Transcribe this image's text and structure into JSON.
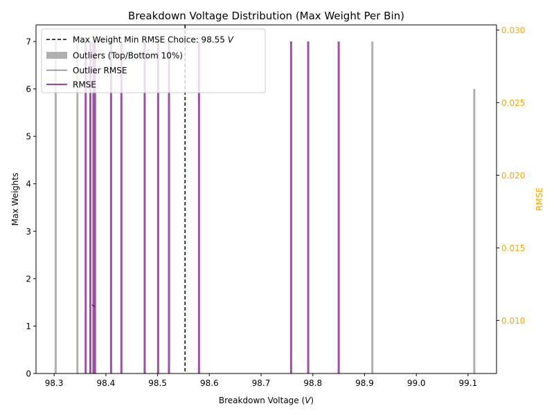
{
  "chart_data": {
    "type": "bar",
    "title": "Breakdown Voltage Distribution (Max Weight Per Bin)",
    "xlabel": "Breakdown Voltage (V)",
    "xlabel_parts": [
      "Breakdown Voltage (",
      "V",
      ")"
    ],
    "ylabel": "Max Weights",
    "y2label": "RMSE",
    "xlim": [
      98.265,
      99.155
    ],
    "ylim": [
      0,
      7.35
    ],
    "y2lim": [
      0.00635,
      0.03035
    ],
    "xticks": [
      98.3,
      98.4,
      98.5,
      98.6,
      98.7,
      98.8,
      98.9,
      99.0,
      99.1
    ],
    "xtick_labels": [
      "98.3",
      "98.4",
      "98.5",
      "98.6",
      "98.7",
      "98.8",
      "98.9",
      "99.0",
      "99.1"
    ],
    "yticks": [
      0,
      1,
      2,
      3,
      4,
      5,
      6,
      7
    ],
    "ytick_labels": [
      "0",
      "1",
      "2",
      "3",
      "4",
      "5",
      "6",
      "7"
    ],
    "y2ticks": [
      0.01,
      0.015,
      0.02,
      0.025,
      0.03
    ],
    "y2tick_labels": [
      "0.010",
      "0.015",
      "0.020",
      "0.025",
      "0.030"
    ],
    "bar_width": 0.004,
    "colors": {
      "bars": "#9b4fa5",
      "outliers": "#b0b0b0",
      "rmse": "#800080",
      "outlier_rmse": "#808080",
      "choice": "#000000",
      "right_axis": "#ffa500"
    },
    "series": [
      {
        "name": "Outliers (Top/Bottom 10%)",
        "x": [
          98.303,
          98.345,
          98.915,
          99.112
        ],
        "values": [
          7,
          7,
          7,
          6
        ]
      },
      {
        "x": [
          98.361,
          98.37,
          98.376,
          98.379,
          98.41,
          98.43,
          98.475,
          98.501,
          98.522,
          98.58,
          98.758,
          98.791,
          98.85
        ],
        "values": [
          7,
          7,
          7,
          7,
          7,
          7,
          7,
          7,
          7,
          7,
          7,
          7,
          7
        ]
      }
    ],
    "rmse_line": {
      "name": "RMSE",
      "x": [
        98.373,
        98.379
      ],
      "y": [
        0.01108,
        0.01095
      ]
    },
    "outlier_rmse_line": {
      "name": "Outlier RMSE",
      "x": [],
      "y": []
    },
    "choice": {
      "x": 98.553,
      "label_prefix": "Max Weight Min RMSE Choice: 98.55 ",
      "label_unit": "V"
    },
    "legend": {
      "position": "upper left",
      "entries": [
        "Max Weight Min RMSE Choice: 98.55 V",
        "Outliers (Top/Bottom 10%)",
        "Outlier RMSE",
        "RMSE"
      ]
    }
  }
}
